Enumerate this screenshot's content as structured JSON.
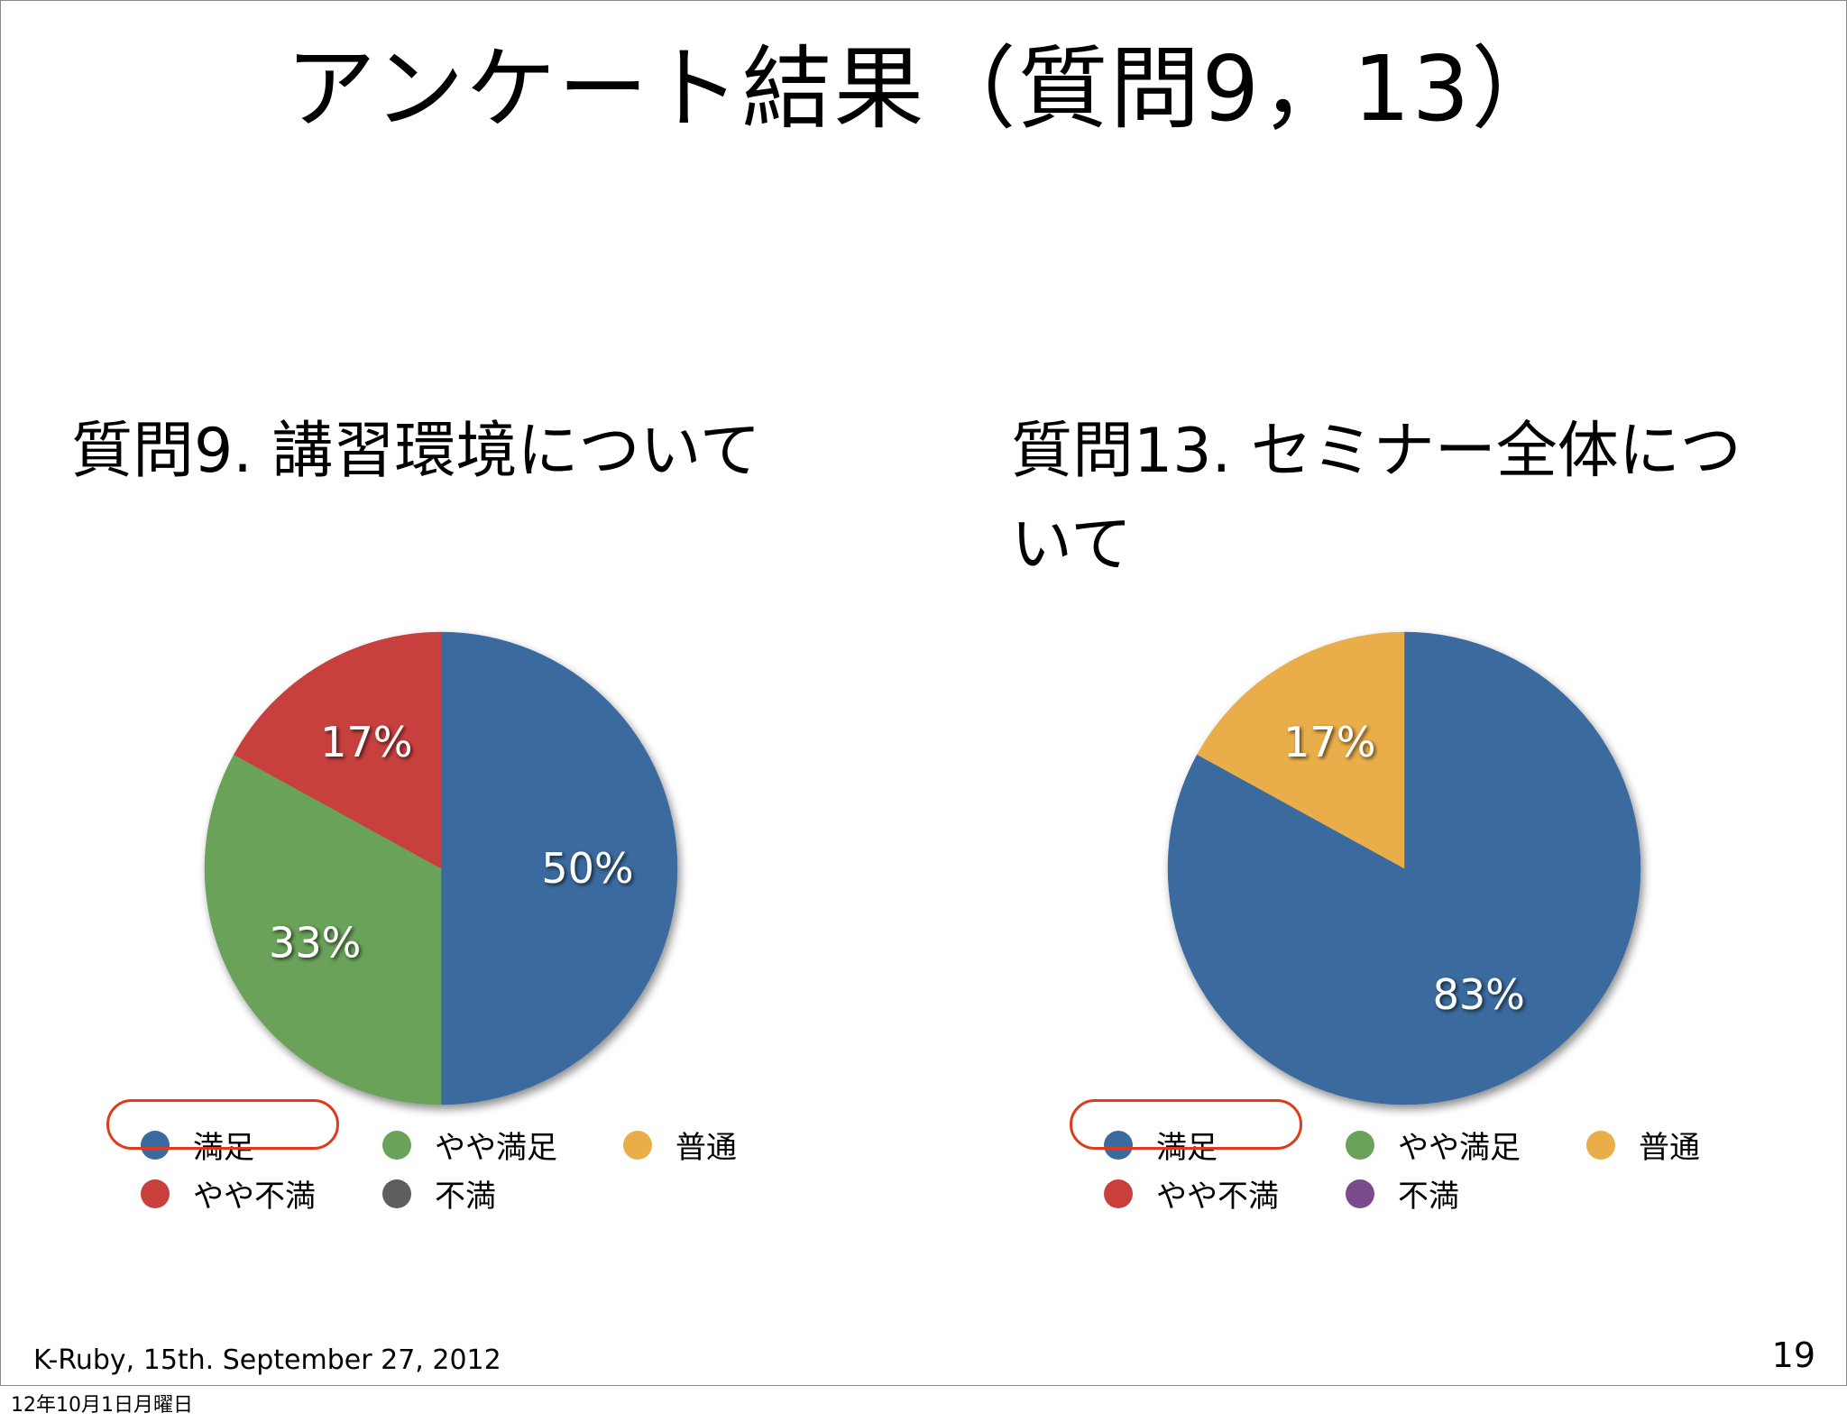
{
  "slide": {
    "title": "アンケート結果（質問9，13）",
    "footer_left": "K-Ruby, 15th. September 27, 2012",
    "page_number": "19"
  },
  "timestamp": "12年10月1日月曜日",
  "legend_labels": [
    "満足",
    "やや満足",
    "普通",
    "やや不満",
    "不満"
  ],
  "chart_data": [
    {
      "type": "pie",
      "title": "質問9. 講習環境について",
      "categories": [
        "満足",
        "やや満足",
        "普通",
        "やや不満",
        "不満"
      ],
      "values": [
        50,
        33,
        0,
        17,
        0
      ],
      "data_labels": [
        "50%",
        "33%",
        "",
        "17%",
        ""
      ],
      "colors": [
        "#3b6a9e",
        "#6ba25a",
        "#e9ae48",
        "#c83f3c",
        "#5e5e60"
      ],
      "legend": "bottom",
      "highlighted_legend": "満足"
    },
    {
      "type": "pie",
      "title": "質問13. セミナー全体について",
      "categories": [
        "満足",
        "やや満足",
        "普通",
        "やや不満",
        "不満"
      ],
      "values": [
        83,
        0,
        17,
        0,
        0
      ],
      "data_labels": [
        "83%",
        "",
        "17%",
        "",
        ""
      ],
      "colors": [
        "#3b6a9e",
        "#6ba25a",
        "#e9ae48",
        "#c83f3c",
        "#7b4b8e"
      ],
      "legend": "bottom",
      "highlighted_legend": "満足"
    }
  ]
}
